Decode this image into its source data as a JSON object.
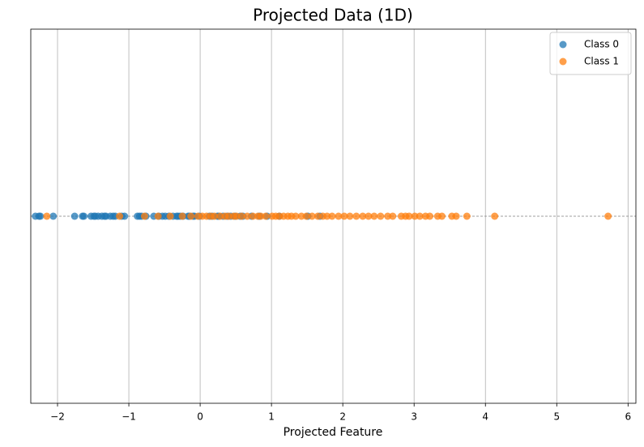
{
  "chart_data": {
    "type": "strip",
    "title": "Projected Data (1D)",
    "x_label": "Projected Feature",
    "xlim": [
      -2.375,
      6.11
    ],
    "xticks": [
      {
        "value": -2,
        "label": "−2"
      },
      {
        "value": -1,
        "label": "−1"
      },
      0,
      1,
      2,
      3,
      4,
      5,
      6
    ],
    "grid": true,
    "legend": "upper right",
    "series": [
      {
        "name": "Class 0",
        "color": "#1f77b4",
        "values": [
          -2.31,
          -2.26,
          -2.24,
          -2.06,
          -1.76,
          -1.65,
          -1.63,
          -1.53,
          -1.49,
          -1.47,
          -1.43,
          -1.38,
          -1.34,
          -1.32,
          -1.26,
          -1.22,
          -1.19,
          -1.1,
          -1.06,
          -0.88,
          -0.85,
          -0.82,
          -0.76,
          -0.65,
          -0.58,
          -0.53,
          -0.49,
          -0.44,
          -0.38,
          -0.33,
          -0.31,
          -0.28,
          -0.24,
          -0.17,
          -0.15,
          -0.1,
          -0.08,
          -0.01,
          0.13,
          0.17,
          0.24,
          0.26,
          0.32,
          0.38,
          0.43,
          0.49,
          0.56,
          0.6,
          0.72,
          0.83,
          0.94,
          1.11,
          1.51,
          1.68
        ]
      },
      {
        "name": "Class 1",
        "color": "#ff7f0e",
        "values": [
          -2.15,
          -1.13,
          -0.78,
          -0.59,
          -0.42,
          -0.25,
          -0.13,
          -0.03,
          0.03,
          0.09,
          0.15,
          0.2,
          0.28,
          0.35,
          0.4,
          0.47,
          0.51,
          0.58,
          0.66,
          0.74,
          0.81,
          0.85,
          0.92,
          1.01,
          1.06,
          1.11,
          1.17,
          1.23,
          1.28,
          1.34,
          1.42,
          1.49,
          1.57,
          1.65,
          1.72,
          1.78,
          1.85,
          1.94,
          2.02,
          2.1,
          2.19,
          2.28,
          2.36,
          2.44,
          2.53,
          2.63,
          2.7,
          2.82,
          2.88,
          2.93,
          3.01,
          3.08,
          3.16,
          3.22,
          3.33,
          3.39,
          3.53,
          3.59,
          3.74,
          4.13,
          5.72
        ]
      }
    ]
  }
}
